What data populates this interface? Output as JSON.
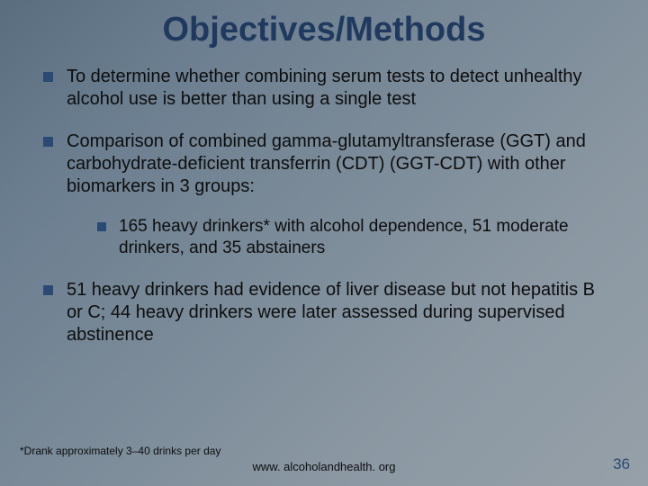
{
  "title": "Objectives/Methods",
  "bullets": {
    "b1": "To determine whether combining serum tests to detect unhealthy alcohol use is better than using a single test",
    "b2": "Comparison of combined gamma-glutamyltransferase (GGT) and carbohydrate-deficient transferrin (CDT) (GGT-CDT) with other biomarkers in 3 groups:",
    "b2_sub1": "165 heavy drinkers* with alcohol dependence, 51 moderate drinkers, and 35 abstainers",
    "b3": "51 heavy drinkers had evidence of liver disease but not hepatitis B or C; 44 heavy drinkers were later assessed during supervised abstinence"
  },
  "footnote": "*Drank approximately 3–40 drinks per day",
  "url": "www. alcoholandhealth. org",
  "page_number": "36",
  "colors": {
    "title_color": "#1f3a5e",
    "bullet_color": "#2a4a73",
    "text_color": "#0d0d0d",
    "pagenum_color": "#2a4a73"
  }
}
